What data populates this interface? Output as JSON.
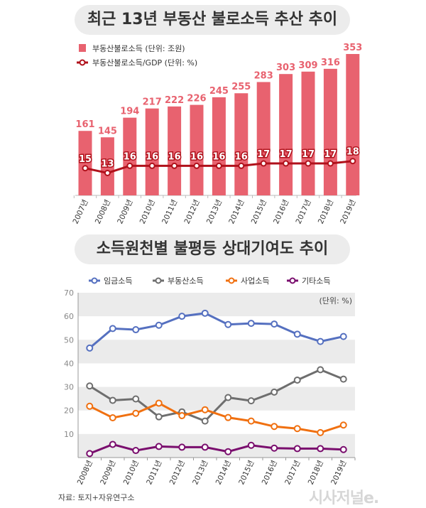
{
  "chart_data": [
    {
      "type": "bar+line",
      "title": "최근 13년 부동산 불로소득 추산 추이",
      "categories": [
        "2007년",
        "2008년",
        "2009년",
        "2010년",
        "2011년",
        "2012년",
        "2013년",
        "2014년",
        "2015년",
        "2016년",
        "2017년",
        "2018년",
        "2019년"
      ],
      "series": [
        {
          "name": "부동산불로소득 (단위: 조원)",
          "type": "bar",
          "color": "#e8626f",
          "values": [
            161,
            145,
            194,
            217,
            222,
            226,
            245,
            255,
            283,
            303,
            309,
            316,
            353
          ]
        },
        {
          "name": "부동산불로소득/GDP (단위: %)",
          "type": "line",
          "color": "#b0111b",
          "values": [
            15,
            13,
            16,
            16,
            16,
            16,
            16,
            16,
            17,
            17,
            17,
            17,
            18
          ]
        }
      ],
      "label_color": "#e8626f",
      "grid": false
    },
    {
      "type": "line",
      "title": "소득원천별 불평등 상대기여도 추이",
      "unit_note": "(단위: %)",
      "categories": [
        "2008년",
        "2009년",
        "2010년",
        "2011년",
        "2012년",
        "2013년",
        "2014년",
        "2015년",
        "2016년",
        "2017년",
        "2018년",
        "2019년"
      ],
      "yticks": [
        10,
        20,
        30,
        40,
        50,
        60,
        70
      ],
      "ylim": [
        0,
        70
      ],
      "legend": "top",
      "series": [
        {
          "name": "임금소득",
          "color": "#5570c0",
          "values": [
            46.5,
            54.8,
            54.3,
            56.2,
            60.0,
            61.3,
            56.5,
            57.0,
            56.7,
            52.4,
            49.3,
            51.4
          ]
        },
        {
          "name": "부동산소득",
          "color": "#6e6e6e",
          "values": [
            30.4,
            24.3,
            24.9,
            17.3,
            19.4,
            15.5,
            25.5,
            24.1,
            27.8,
            32.9,
            37.3,
            33.3
          ]
        },
        {
          "name": "사업소득",
          "color": "#f07010",
          "values": [
            21.8,
            16.9,
            18.8,
            23.1,
            17.8,
            20.3,
            17.0,
            15.5,
            13.2,
            12.3,
            10.6,
            13.8
          ]
        },
        {
          "name": "기타소득",
          "color": "#7a0e6e",
          "values": [
            1.7,
            5.6,
            3.0,
            4.7,
            4.4,
            4.4,
            2.5,
            5.2,
            4.0,
            3.8,
            3.8,
            3.4
          ]
        }
      ]
    }
  ],
  "source": "자료: 토지+자유연구소",
  "watermark": "시사저널e."
}
